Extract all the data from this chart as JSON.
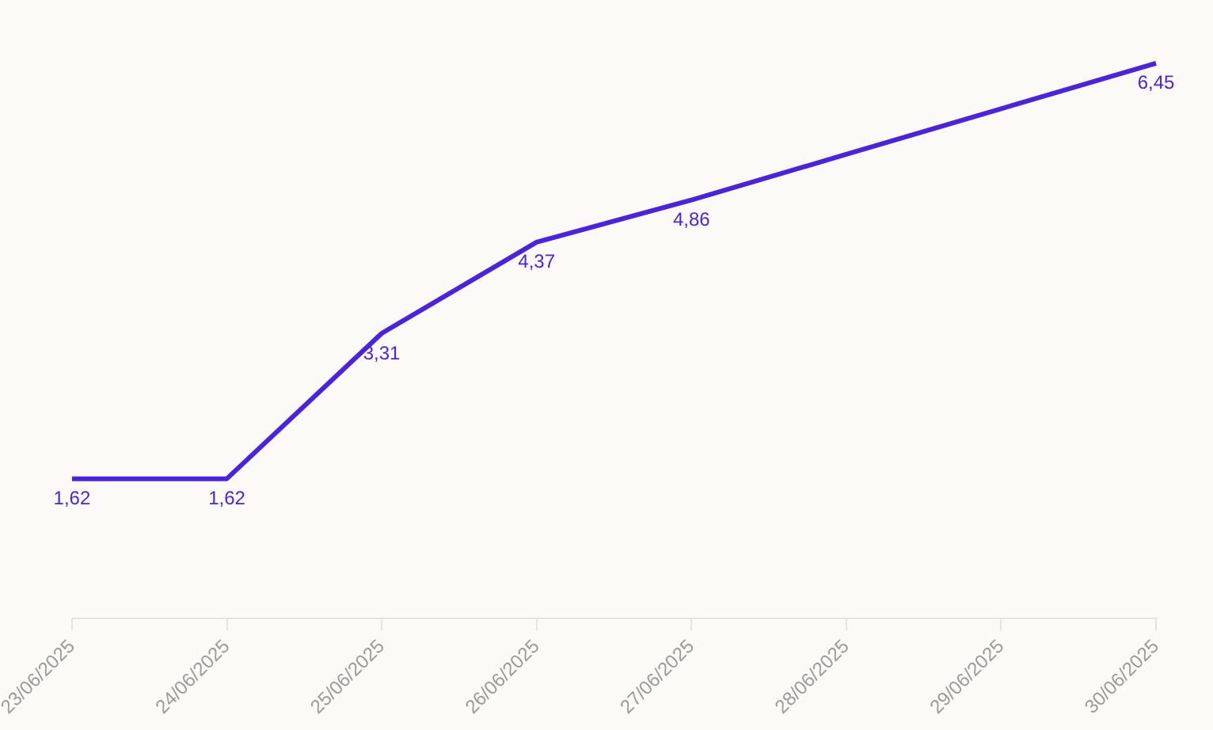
{
  "chart_data": {
    "type": "line",
    "categories": [
      "23/06/2025",
      "24/06/2025",
      "25/06/2025",
      "26/06/2025",
      "27/06/2025",
      "28/06/2025",
      "29/06/2025",
      "30/06/2025"
    ],
    "series": [
      {
        "color": "#4a22e0",
        "values": [
          1.62,
          1.62,
          3.31,
          4.37,
          4.86,
          5.39,
          5.92,
          6.45
        ],
        "value_labels": [
          "1,62",
          "1,62",
          "3,31",
          "4,37",
          "4,86",
          null,
          null,
          "6,45"
        ]
      }
    ],
    "tick_labels": "x",
    "grid": false,
    "legend": false,
    "marker": "none"
  }
}
